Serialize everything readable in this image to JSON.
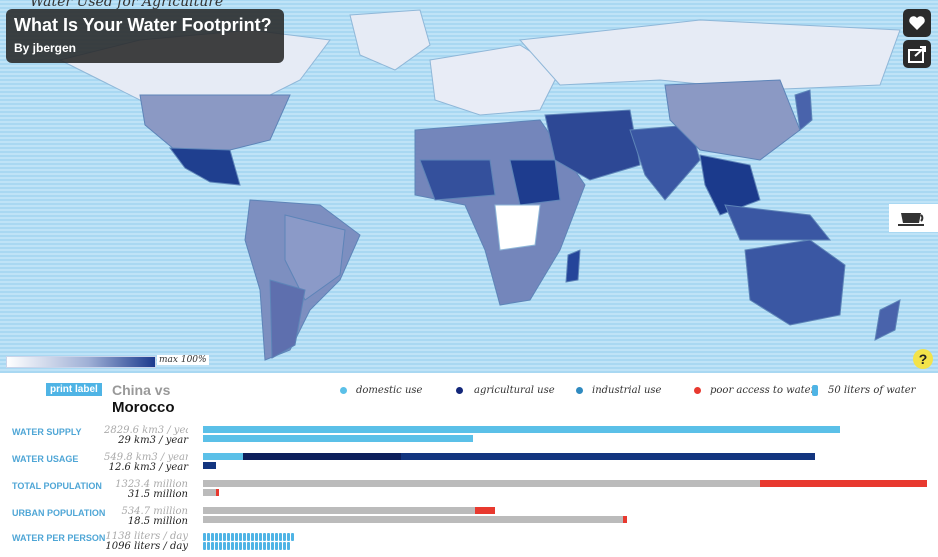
{
  "map": {
    "header_text": "Water Used for Agriculture",
    "title": "What Is Your Water Footprint?",
    "author": "By jbergen",
    "legend_max": "max 100%",
    "help": "?"
  },
  "icons": [
    "heart-icon",
    "share-icon",
    "coffee-cup-icon",
    "help-icon"
  ],
  "panel": {
    "print_label": "print label",
    "compare_line1": "China vs",
    "compare_line2": "Morocco",
    "legend": [
      {
        "label": "domestic use",
        "color": "#5bc0e8"
      },
      {
        "label": "agricultural use",
        "color": "#13277a"
      },
      {
        "label": "industrial use",
        "color": "#2f8ac0"
      },
      {
        "label": "poor access to water",
        "color": "#e8392f"
      },
      {
        "label": "50 liters of water",
        "color": "#4fb4e5"
      }
    ],
    "rows": [
      {
        "label": "WATER SUPPLY",
        "v1": "2829.6 km3 / year",
        "v2": "29 km3 / year",
        "bar1": [
          {
            "color": "#5bc0e8",
            "frac": 0.88
          }
        ],
        "bar2": [
          {
            "color": "#5bc0e8",
            "frac": 0.373
          }
        ]
      },
      {
        "label": "WATER USAGE",
        "v1": "549.8 km3 / year",
        "v2": "12.6 km3 / year",
        "bar1": [
          {
            "color": "#5bc0e8",
            "frac": 0.055
          },
          {
            "color": "#0d1f5c",
            "frac": 0.218
          },
          {
            "color": "#13357f",
            "frac": 0.572
          }
        ],
        "bar2": [
          {
            "color": "#13357f",
            "frac": 0.018
          }
        ]
      },
      {
        "label": "TOTAL POPULATION",
        "v1": "1323.4 million",
        "v2": "31.5 million",
        "bar1": [
          {
            "color": "#bbbbbb",
            "frac": 0.77
          },
          {
            "color": "#e8392f",
            "frac": 0.23
          }
        ],
        "bar2": [
          {
            "color": "#bbbbbb",
            "frac": 0.018
          },
          {
            "color": "#e8392f",
            "frac": 0.004
          }
        ]
      },
      {
        "label": "URBAN POPULATION",
        "v1": "534.7 million",
        "v2": "18.5 million",
        "bar1": [
          {
            "color": "#bbbbbb",
            "frac": 0.376
          },
          {
            "color": "#e8392f",
            "frac": 0.028
          }
        ],
        "bar2": [
          {
            "color": "#bbbbbb",
            "frac": 0.58
          },
          {
            "color": "#e8392f",
            "frac": 0.005
          }
        ]
      },
      {
        "label": "WATER PER PERSON",
        "v1": "1138 liters / day",
        "v2": "1096 liters / day",
        "drops1": 23,
        "drops2": 22
      }
    ]
  }
}
